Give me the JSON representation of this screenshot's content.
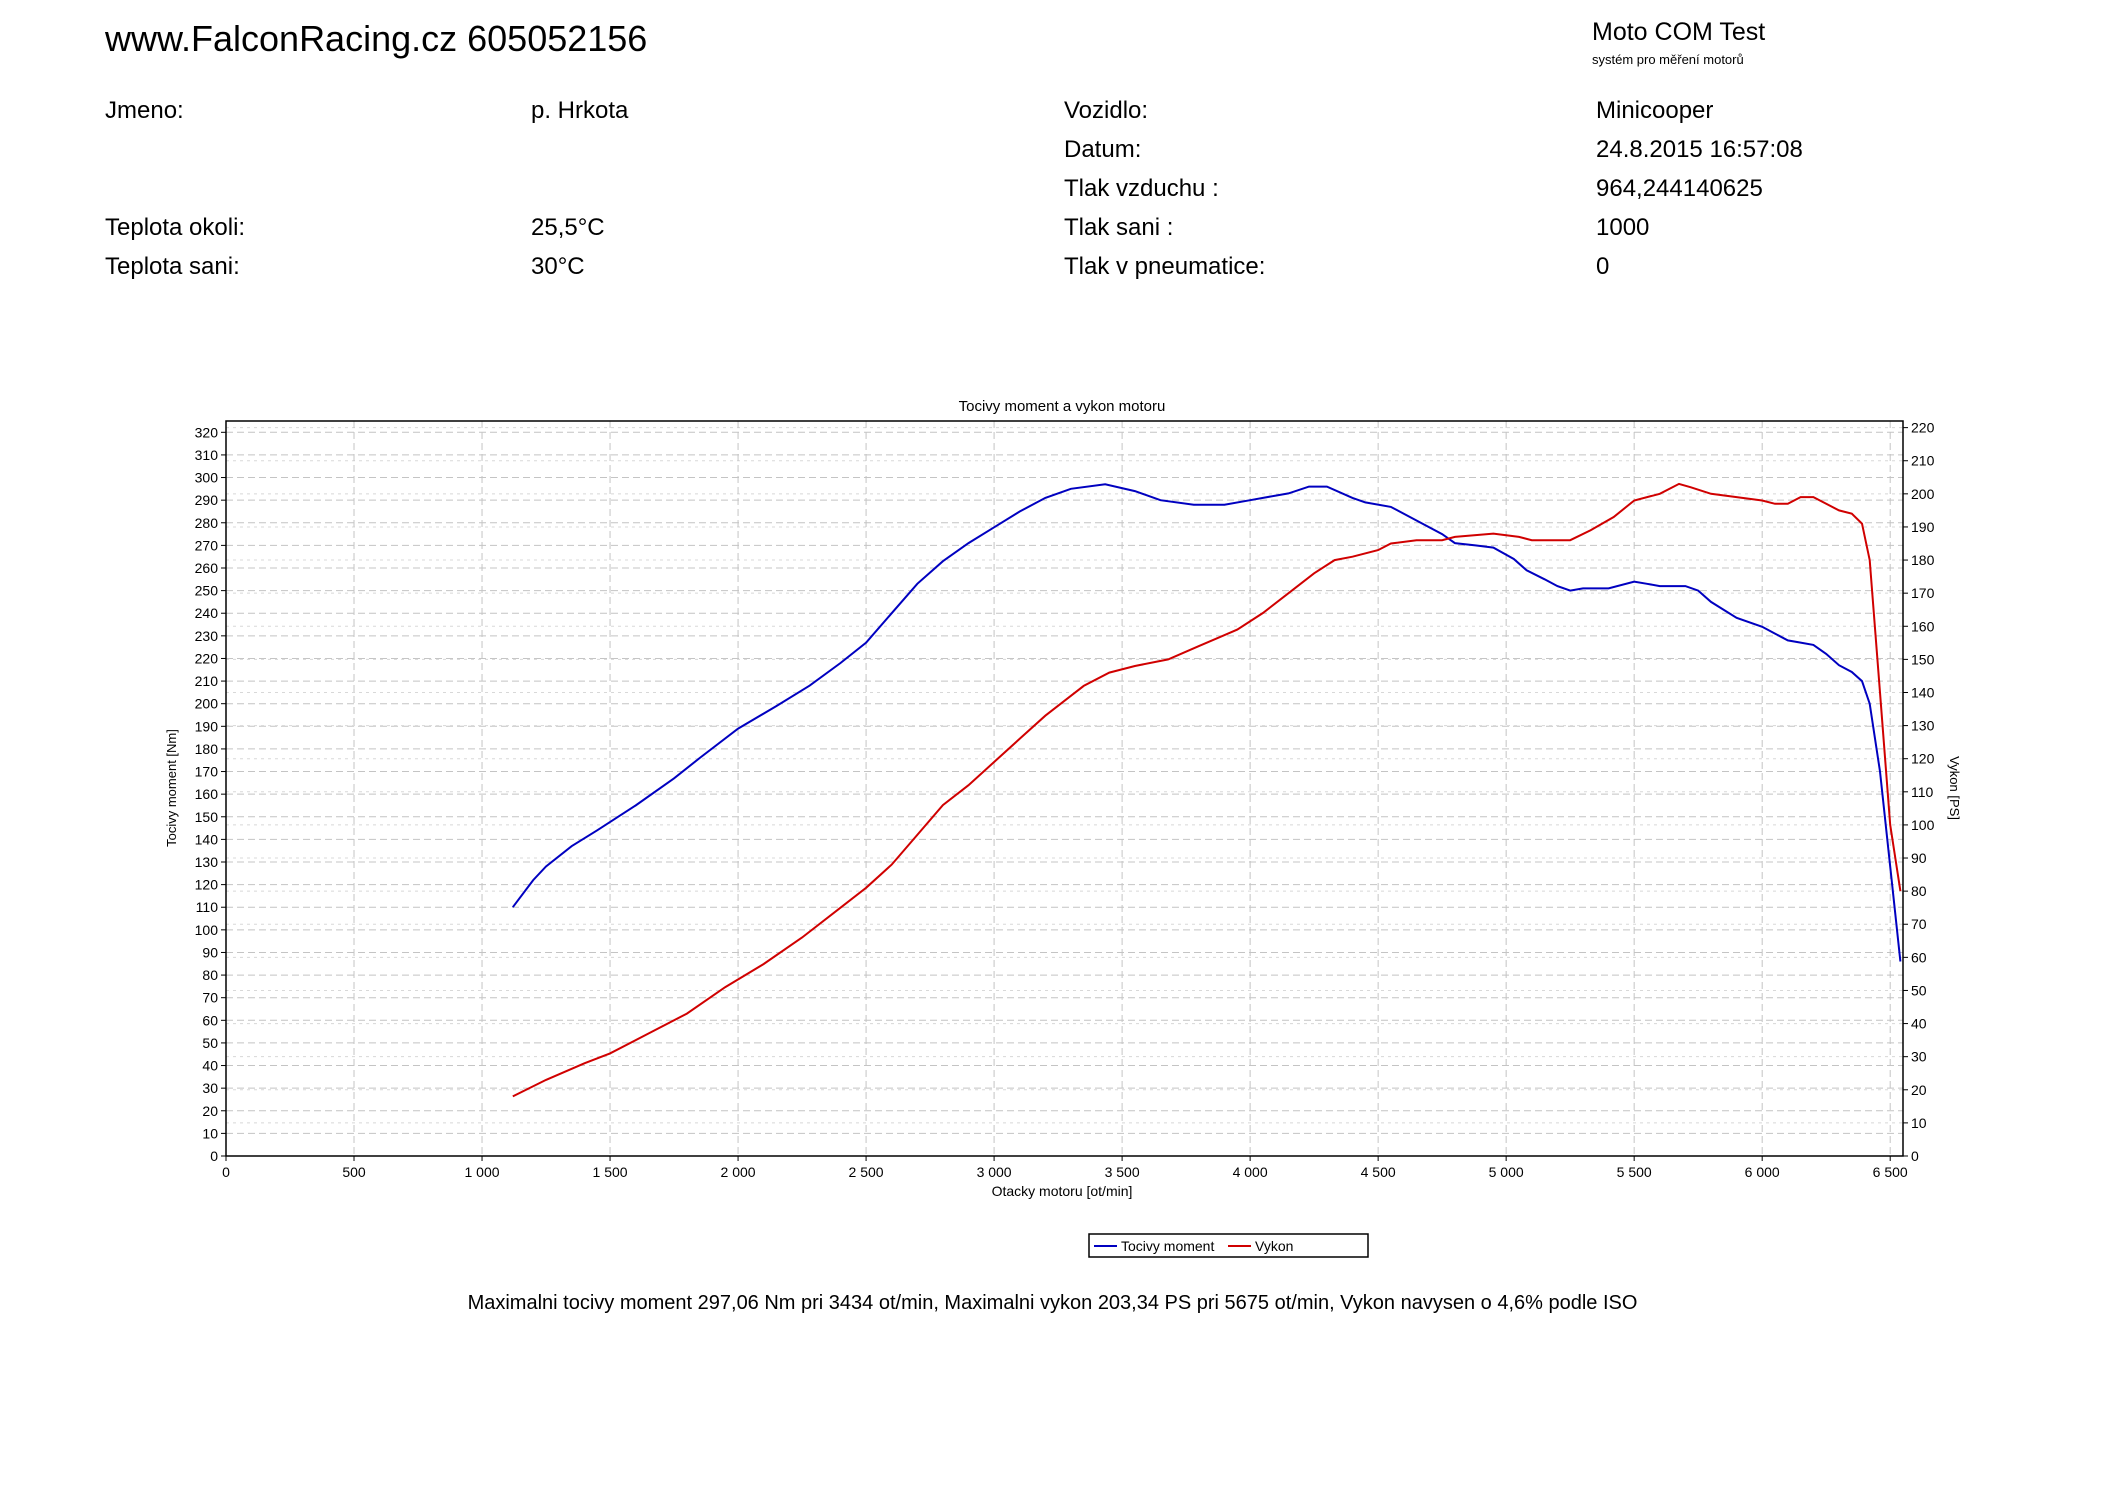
{
  "header": {
    "site": "www.FalconRacing.cz 605052156",
    "brand": "Moto COM Test",
    "brand_sub": "systém pro měření motorů"
  },
  "info": {
    "left": [
      {
        "label": "Jmeno:",
        "value": "p. Hrkota"
      },
      {
        "label": "",
        "value": ""
      },
      {
        "label": "",
        "value": ""
      },
      {
        "label": "Teplota okoli:",
        "value": "25,5°C"
      },
      {
        "label": "Teplota sani:",
        "value": "30°C"
      }
    ],
    "right": [
      {
        "label": "Vozidlo:",
        "value": "Minicooper"
      },
      {
        "label": "Datum:",
        "value": "24.8.2015 16:57:08"
      },
      {
        "label": "Tlak vzduchu :",
        "value": "964,244140625"
      },
      {
        "label": "Tlak sani :",
        "value": "1000"
      },
      {
        "label": "Tlak v pneumatice:",
        "value": "0"
      }
    ]
  },
  "summary": "Maximalni tocivy moment 297,06 Nm pri 3434 ot/min,  Maximalni vykon 203,34 PS pri 5675 ot/min,  Vykon navysen o 4,6% podle ISO",
  "chart_data": {
    "type": "line",
    "title": "Tocivy moment a vykon motoru",
    "xlabel": "Otacky motoru [ot/min]",
    "ylabel": "Tocivy moment [Nm]",
    "y2label": "Vykon [PS]",
    "xlim": [
      0,
      6550
    ],
    "ylim": [
      0,
      325
    ],
    "y2lim": [
      0,
      222
    ],
    "x_ticks": [
      0,
      500,
      1000,
      1500,
      2000,
      2500,
      3000,
      3500,
      4000,
      4500,
      5000,
      5500,
      6000,
      6500
    ],
    "x_tick_labels": [
      "0",
      "500",
      "1 000",
      "1 500",
      "2 000",
      "2 500",
      "3 000",
      "3 500",
      "4 000",
      "4 500",
      "5 000",
      "5 500",
      "6 000",
      "6 500"
    ],
    "y_tick_step": 10,
    "y2_tick_step": 10,
    "grid": true,
    "legend_position": "bottom",
    "colors": {
      "torque": "#0000c0",
      "power": "#d00000"
    },
    "series": [
      {
        "name": "Tocivy moment",
        "axis": "left",
        "points": [
          [
            1120,
            110
          ],
          [
            1200,
            122
          ],
          [
            1250,
            128
          ],
          [
            1350,
            137
          ],
          [
            1450,
            144
          ],
          [
            1600,
            155
          ],
          [
            1750,
            167
          ],
          [
            1850,
            176
          ],
          [
            2000,
            189
          ],
          [
            2150,
            199
          ],
          [
            2280,
            208
          ],
          [
            2400,
            218
          ],
          [
            2500,
            227
          ],
          [
            2600,
            240
          ],
          [
            2700,
            253
          ],
          [
            2800,
            263
          ],
          [
            2900,
            271
          ],
          [
            3000,
            278
          ],
          [
            3100,
            285
          ],
          [
            3200,
            291
          ],
          [
            3300,
            295
          ],
          [
            3434,
            297
          ],
          [
            3550,
            294
          ],
          [
            3650,
            290
          ],
          [
            3780,
            288
          ],
          [
            3900,
            288
          ],
          [
            4000,
            290
          ],
          [
            4100,
            292
          ],
          [
            4150,
            293
          ],
          [
            4230,
            296
          ],
          [
            4300,
            296
          ],
          [
            4400,
            291
          ],
          [
            4450,
            289
          ],
          [
            4550,
            287
          ],
          [
            4650,
            281
          ],
          [
            4750,
            275
          ],
          [
            4800,
            271
          ],
          [
            4880,
            270
          ],
          [
            4950,
            269
          ],
          [
            5030,
            264
          ],
          [
            5080,
            259
          ],
          [
            5150,
            255
          ],
          [
            5200,
            252
          ],
          [
            5250,
            250
          ],
          [
            5300,
            251
          ],
          [
            5400,
            251
          ],
          [
            5500,
            254
          ],
          [
            5550,
            253
          ],
          [
            5600,
            252
          ],
          [
            5700,
            252
          ],
          [
            5750,
            250
          ],
          [
            5800,
            245
          ],
          [
            5900,
            238
          ],
          [
            6000,
            234
          ],
          [
            6050,
            231
          ],
          [
            6100,
            228
          ],
          [
            6150,
            227
          ],
          [
            6200,
            226
          ],
          [
            6250,
            222
          ],
          [
            6300,
            217
          ],
          [
            6350,
            214
          ],
          [
            6390,
            210
          ],
          [
            6420,
            200
          ],
          [
            6460,
            170
          ],
          [
            6500,
            128
          ],
          [
            6540,
            86
          ]
        ]
      },
      {
        "name": "Vykon",
        "axis": "right",
        "points": [
          [
            1120,
            18
          ],
          [
            1250,
            23
          ],
          [
            1400,
            28
          ],
          [
            1500,
            31
          ],
          [
            1650,
            37
          ],
          [
            1800,
            43
          ],
          [
            1950,
            51
          ],
          [
            2100,
            58
          ],
          [
            2250,
            66
          ],
          [
            2400,
            75
          ],
          [
            2500,
            81
          ],
          [
            2600,
            88
          ],
          [
            2700,
            97
          ],
          [
            2800,
            106
          ],
          [
            2900,
            112
          ],
          [
            3000,
            119
          ],
          [
            3100,
            126
          ],
          [
            3200,
            133
          ],
          [
            3300,
            139
          ],
          [
            3350,
            142
          ],
          [
            3450,
            146
          ],
          [
            3550,
            148
          ],
          [
            3680,
            150
          ],
          [
            3800,
            154
          ],
          [
            3950,
            159
          ],
          [
            4050,
            164
          ],
          [
            4150,
            170
          ],
          [
            4250,
            176
          ],
          [
            4330,
            180
          ],
          [
            4400,
            181
          ],
          [
            4500,
            183
          ],
          [
            4550,
            185
          ],
          [
            4650,
            186
          ],
          [
            4750,
            186
          ],
          [
            4800,
            187
          ],
          [
            4950,
            188
          ],
          [
            5050,
            187
          ],
          [
            5100,
            186
          ],
          [
            5180,
            186
          ],
          [
            5250,
            186
          ],
          [
            5330,
            189
          ],
          [
            5420,
            193
          ],
          [
            5500,
            198
          ],
          [
            5600,
            200
          ],
          [
            5675,
            203
          ],
          [
            5720,
            202
          ],
          [
            5800,
            200
          ],
          [
            5900,
            199
          ],
          [
            6000,
            198
          ],
          [
            6050,
            197
          ],
          [
            6100,
            197
          ],
          [
            6150,
            199
          ],
          [
            6200,
            199
          ],
          [
            6250,
            197
          ],
          [
            6300,
            195
          ],
          [
            6350,
            194
          ],
          [
            6390,
            191
          ],
          [
            6420,
            180
          ],
          [
            6460,
            140
          ],
          [
            6500,
            100
          ],
          [
            6540,
            80
          ]
        ]
      }
    ]
  }
}
